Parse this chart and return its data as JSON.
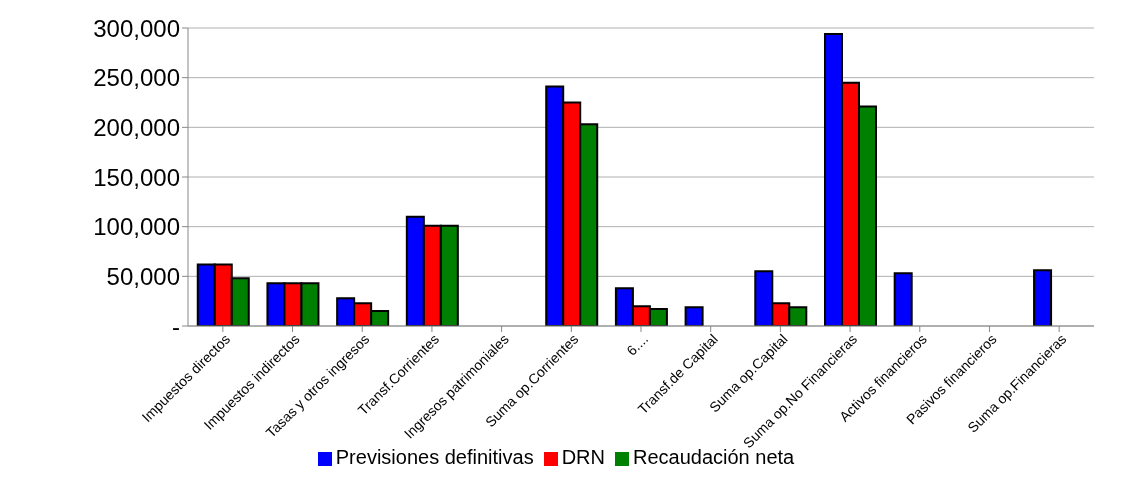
{
  "chart_data": {
    "type": "bar",
    "categories": [
      "Impuestos directos",
      "Impuestos indirectos",
      "Tasas y otros ingresos",
      "Transf.Corrientes",
      "Ingresos patrimoniales",
      "Suma op.Corrientes",
      "6....",
      "Transf.de Capital",
      "Suma op.Capital",
      "Suma op.No Financieras",
      "Activos financieros",
      "Pasivos financieros",
      "Suma op.Financieras"
    ],
    "series": [
      {
        "name": "Previsiones definitivas",
        "color": "#0000ff",
        "values": [
          62000,
          43000,
          28000,
          110000,
          0,
          241000,
          38000,
          19000,
          55000,
          294000,
          53000,
          0,
          56000
        ]
      },
      {
        "name": "DRN",
        "color": "#ff0000",
        "values": [
          62000,
          43000,
          23000,
          101000,
          0,
          225000,
          20000,
          0,
          23000,
          245000,
          0,
          0,
          0
        ]
      },
      {
        "name": "Recaudación neta",
        "color": "#008000",
        "values": [
          48000,
          43000,
          15000,
          101000,
          0,
          203000,
          17000,
          0,
          19000,
          221000,
          0,
          0,
          0
        ]
      }
    ],
    "ylim": [
      0,
      300000
    ],
    "yticks": [
      {
        "value": 0,
        "label": "-"
      },
      {
        "value": 50000,
        "label": "50,000"
      },
      {
        "value": 100000,
        "label": "100,000"
      },
      {
        "value": 150000,
        "label": "150,000"
      },
      {
        "value": 200000,
        "label": "200,000"
      },
      {
        "value": 250000,
        "label": "250,000"
      },
      {
        "value": 300000,
        "label": "300,000"
      }
    ],
    "grid": "y",
    "legend": "bottom"
  }
}
